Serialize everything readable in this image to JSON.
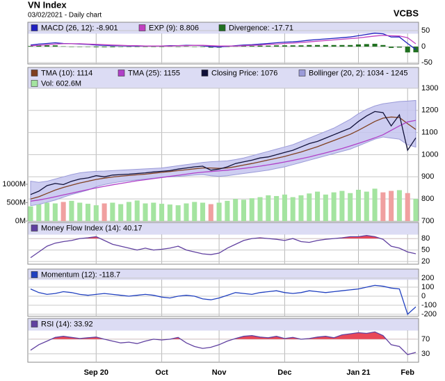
{
  "header": {
    "title": "VN Index",
    "subtitle": "03/02/2021 - Daily chart",
    "source": "VCBS"
  },
  "chart_data": [
    {
      "type": "macd",
      "ylim": [
        -54,
        76
      ],
      "yticks": [
        50,
        0,
        -50
      ],
      "grid": true,
      "series": [
        {
          "name": "MACD (26, 12): -8.901",
          "color": "#2020c0",
          "style": "line",
          "values": [
            5,
            8,
            10,
            12,
            10,
            9,
            8,
            7,
            5,
            4,
            3,
            3,
            2,
            2,
            2,
            2,
            2,
            3,
            3,
            4,
            4,
            3,
            0,
            -1,
            1,
            3,
            5,
            6,
            8,
            10,
            12,
            14,
            15,
            17,
            20,
            22,
            24,
            26,
            28,
            30,
            34,
            38,
            42,
            40,
            30,
            30,
            10,
            -8.901
          ]
        },
        {
          "name": "EXP (9): 8.806",
          "color": "#c040c0",
          "style": "line",
          "values": [
            3,
            4,
            6,
            8,
            9,
            9,
            9,
            8,
            7,
            6,
            5,
            4,
            3,
            3,
            2,
            2,
            2,
            2,
            3,
            3,
            4,
            4,
            3,
            2,
            2,
            2,
            3,
            4,
            5,
            7,
            8,
            10,
            11,
            13,
            15,
            17,
            19,
            21,
            23,
            25,
            27,
            30,
            33,
            35,
            34,
            33,
            28,
            8.806
          ]
        },
        {
          "name": "Divergence: -17.71",
          "color": "#207020",
          "style": "bar",
          "values": [
            2,
            4,
            4,
            4,
            1,
            0,
            -1,
            -1,
            -2,
            -2,
            -2,
            -1,
            -1,
            -1,
            0,
            0,
            0,
            1,
            0,
            1,
            0,
            -1,
            -3,
            -3,
            -1,
            1,
            2,
            2,
            3,
            3,
            4,
            4,
            4,
            4,
            5,
            5,
            5,
            5,
            5,
            5,
            7,
            8,
            9,
            5,
            -4,
            -3,
            -18,
            -17.71
          ]
        }
      ]
    },
    {
      "type": "price",
      "ylim": [
        700,
        1394
      ],
      "yticks": [
        1300,
        1200,
        1100,
        1000,
        900,
        800,
        700
      ],
      "grid": true,
      "y2lim": [
        0,
        4170
      ],
      "y2ticks": [
        {
          "value": 1000,
          "label": "1000M"
        },
        {
          "value": 500,
          "label": "500M"
        },
        {
          "value": 0,
          "label": "0M"
        }
      ],
      "series": [
        {
          "name": "TMA (10): 1114",
          "color": "#804020",
          "style": "line",
          "values": [
            800,
            810,
            825,
            840,
            852,
            862,
            872,
            880,
            888,
            894,
            899,
            903,
            906,
            909,
            912,
            916,
            920,
            924,
            928,
            932,
            936,
            940,
            940,
            938,
            940,
            946,
            953,
            960,
            968,
            976,
            984,
            992,
            1002,
            1012,
            1024,
            1036,
            1050,
            1064,
            1078,
            1092,
            1110,
            1130,
            1150,
            1165,
            1170,
            1168,
            1140,
            1114
          ]
        },
        {
          "name": "TMA (25): 1155",
          "color": "#b040c8",
          "style": "line",
          "values": [
            790,
            795,
            802,
            810,
            818,
            826,
            834,
            842,
            850,
            857,
            864,
            870,
            876,
            882,
            887,
            892,
            897,
            902,
            907,
            912,
            917,
            921,
            924,
            927,
            930,
            934,
            938,
            943,
            948,
            954,
            960,
            967,
            974,
            982,
            990,
            999,
            1008,
            1018,
            1028,
            1039,
            1051,
            1063,
            1076,
            1090,
            1110,
            1130,
            1148,
            1155
          ]
        },
        {
          "name": "Closing Price: 1076",
          "color": "#101038",
          "style": "line",
          "values": [
            820,
            835,
            860,
            870,
            865,
            880,
            890,
            895,
            905,
            900,
            908,
            910,
            912,
            915,
            918,
            922,
            925,
            928,
            935,
            940,
            945,
            948,
            930,
            935,
            945,
            960,
            968,
            975,
            985,
            990,
            1000,
            1010,
            1020,
            1035,
            1050,
            1060,
            1075,
            1090,
            1105,
            1120,
            1150,
            1175,
            1195,
            1190,
            1130,
            1180,
            1020,
            1076
          ]
        },
        {
          "name": "Bollinger (20, 2): 1034 - 1245",
          "color": "#c4c4ee",
          "style": "band",
          "upper": [
            880,
            875,
            880,
            890,
            900,
            910,
            918,
            922,
            925,
            926,
            928,
            930,
            932,
            934,
            936,
            938,
            940,
            945,
            950,
            955,
            960,
            965,
            968,
            970,
            972,
            978,
            985,
            995,
            1005,
            1015,
            1025,
            1035,
            1045,
            1060,
            1075,
            1090,
            1105,
            1120,
            1140,
            1160,
            1185,
            1205,
            1220,
            1230,
            1235,
            1240,
            1242,
            1245
          ],
          "lower": [
            770,
            775,
            785,
            795,
            808,
            820,
            830,
            840,
            855,
            865,
            872,
            878,
            882,
            886,
            890,
            894,
            898,
            900,
            902,
            905,
            908,
            910,
            905,
            902,
            905,
            910,
            915,
            920,
            925,
            930,
            938,
            945,
            955,
            965,
            975,
            985,
            995,
            1005,
            1015,
            1025,
            1040,
            1055,
            1070,
            1080,
            1075,
            1070,
            1045,
            1034
          ]
        },
        {
          "name": "Vol: 602.6M",
          "color": "#a4e4a0",
          "down_color": "#f0a0a0",
          "style": "volume",
          "axis": "y2",
          "values": [
            400,
            450,
            500,
            480,
            520,
            550,
            500,
            470,
            430,
            480,
            500,
            460,
            520,
            560,
            480,
            500,
            470,
            450,
            430,
            480,
            520,
            500,
            460,
            500,
            550,
            600,
            580,
            620,
            650,
            700,
            680,
            720,
            650,
            700,
            750,
            800,
            720,
            780,
            820,
            760,
            850,
            800,
            880,
            780,
            820,
            840,
            760,
            602.6
          ]
        }
      ]
    },
    {
      "type": "oscillator",
      "ylim": [
        13,
        122
      ],
      "yticks": [
        80,
        50,
        20
      ],
      "grid": true,
      "highlight_above": 80,
      "highlight_color": "#e84858",
      "series": [
        {
          "name": "Money Flow Index (14): 40.17",
          "color": "#6040a0",
          "style": "line",
          "values": [
            30,
            45,
            60,
            68,
            72,
            75,
            80,
            82,
            85,
            75,
            65,
            60,
            55,
            50,
            55,
            50,
            52,
            55,
            60,
            50,
            45,
            40,
            38,
            42,
            55,
            65,
            75,
            80,
            82,
            80,
            78,
            75,
            80,
            72,
            70,
            75,
            78,
            80,
            82,
            85,
            85,
            88,
            85,
            78,
            60,
            55,
            45,
            40.17
          ]
        }
      ]
    },
    {
      "type": "oscillator",
      "ylim": [
        -223,
        300
      ],
      "yticks": [
        200,
        100,
        0,
        -100,
        -200
      ],
      "grid": true,
      "series": [
        {
          "name": "Momentum (12): -118.7",
          "color": "#2040c0",
          "style": "line",
          "values": [
            80,
            40,
            20,
            30,
            50,
            40,
            20,
            10,
            20,
            30,
            20,
            10,
            0,
            10,
            20,
            10,
            -10,
            -20,
            0,
            10,
            0,
            -30,
            -40,
            -20,
            10,
            40,
            30,
            20,
            40,
            50,
            60,
            40,
            30,
            40,
            60,
            50,
            40,
            50,
            60,
            70,
            80,
            100,
            120,
            110,
            90,
            80,
            -200,
            -118.7
          ]
        }
      ]
    },
    {
      "type": "oscillator",
      "ylim": [
        7,
        127
      ],
      "yticks": [
        70,
        30
      ],
      "grid": true,
      "highlight_above": 70,
      "highlight_color": "#e84858",
      "categories": [
        null,
        null,
        null,
        null,
        null,
        null,
        null,
        null,
        "Sep 20",
        null,
        null,
        null,
        null,
        null,
        null,
        null,
        "Oct",
        null,
        null,
        null,
        null,
        null,
        null,
        "Nov",
        null,
        null,
        null,
        null,
        null,
        null,
        null,
        "Dec",
        null,
        null,
        null,
        null,
        null,
        null,
        null,
        null,
        "Jan 21",
        null,
        null,
        null,
        null,
        null,
        "Feb",
        null
      ],
      "series": [
        {
          "name": "RSI (14): 33.92",
          "color": "#6040a0",
          "style": "line",
          "values": [
            40,
            55,
            65,
            75,
            78,
            75,
            72,
            74,
            76,
            70,
            65,
            60,
            62,
            58,
            65,
            70,
            68,
            70,
            75,
            60,
            50,
            45,
            48,
            55,
            65,
            72,
            78,
            80,
            76,
            74,
            78,
            72,
            75,
            70,
            72,
            76,
            78,
            74,
            82,
            85,
            88,
            86,
            90,
            80,
            55,
            50,
            28,
            33.92
          ]
        }
      ]
    }
  ]
}
